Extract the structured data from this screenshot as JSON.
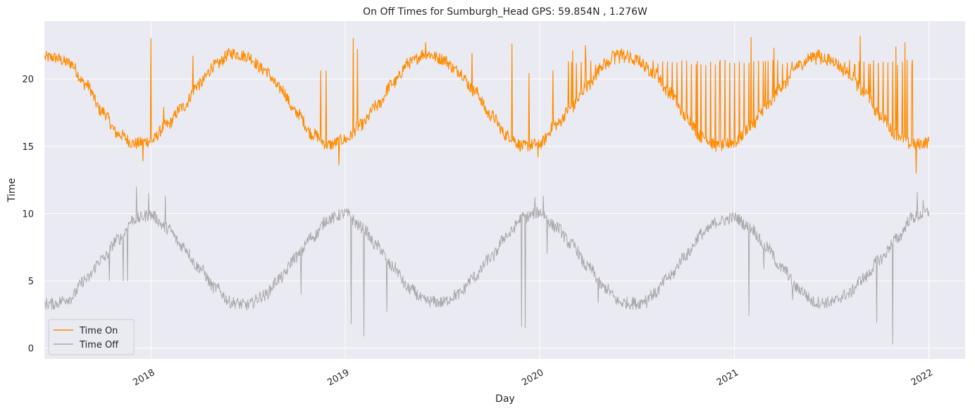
{
  "chart_data": {
    "type": "line",
    "title": "On Off Times for Sumburgh_Head  GPS: 59.854N , 1.276W",
    "xlabel": "Day",
    "ylabel": "Time",
    "x_range": [
      "2017-06-15",
      "2022-03-10"
    ],
    "ylim": [
      -0.8,
      24.3
    ],
    "x_ticks": [
      {
        "date": "2018-01-01",
        "label": "2018"
      },
      {
        "date": "2019-01-01",
        "label": "2019"
      },
      {
        "date": "2020-01-01",
        "label": "2020"
      },
      {
        "date": "2021-01-01",
        "label": "2021"
      },
      {
        "date": "2022-01-01",
        "label": "2022"
      }
    ],
    "y_ticks": [
      0,
      5,
      10,
      15,
      20
    ],
    "grid": true,
    "legend_position": "bottom-left",
    "background_color": "#eaeaf2",
    "series": [
      {
        "name": "Time On",
        "color": "#ff8c00",
        "points": [
          [
            "2017-07-01",
            21.6
          ],
          [
            "2017-08-01",
            21.2
          ],
          [
            "2017-09-01",
            19.6
          ],
          [
            "2017-10-01",
            17.6
          ],
          [
            "2017-11-01",
            15.9
          ],
          [
            "2017-12-01",
            15.2
          ],
          [
            "2018-01-01",
            15.4
          ],
          [
            "2018-02-01",
            16.6
          ],
          [
            "2018-03-01",
            17.9
          ],
          [
            "2018-04-01",
            19.6
          ],
          [
            "2018-05-01",
            21.0
          ],
          [
            "2018-06-01",
            21.9
          ],
          [
            "2018-07-01",
            21.7
          ],
          [
            "2018-08-01",
            20.7
          ],
          [
            "2018-09-01",
            19.3
          ],
          [
            "2018-10-01",
            17.5
          ],
          [
            "2018-11-01",
            15.9
          ],
          [
            "2018-12-01",
            15.1
          ],
          [
            "2019-01-01",
            15.5
          ],
          [
            "2019-02-01",
            16.6
          ],
          [
            "2019-03-01",
            18.0
          ],
          [
            "2019-04-01",
            19.7
          ],
          [
            "2019-05-01",
            21.2
          ],
          [
            "2019-06-01",
            21.9
          ],
          [
            "2019-07-01",
            21.5
          ],
          [
            "2019-08-01",
            20.6
          ],
          [
            "2019-09-01",
            19.1
          ],
          [
            "2019-10-01",
            17.3
          ],
          [
            "2019-11-01",
            15.8
          ],
          [
            "2019-12-01",
            15.0
          ],
          [
            "2020-01-01",
            15.2
          ],
          [
            "2020-02-01",
            16.6
          ],
          [
            "2020-03-01",
            17.9
          ],
          [
            "2020-04-01",
            19.5
          ],
          [
            "2020-05-01",
            21.1
          ],
          [
            "2020-06-01",
            21.9
          ],
          [
            "2020-07-01",
            21.4
          ],
          [
            "2020-08-01",
            20.5
          ],
          [
            "2020-09-01",
            19.0
          ],
          [
            "2020-10-01",
            17.2
          ],
          [
            "2020-11-01",
            15.7
          ],
          [
            "2020-12-01",
            15.0
          ],
          [
            "2021-01-01",
            15.3
          ],
          [
            "2021-02-01",
            16.5
          ],
          [
            "2021-03-01",
            17.9
          ],
          [
            "2021-04-01",
            19.5
          ],
          [
            "2021-05-01",
            21.0
          ],
          [
            "2021-06-01",
            21.8
          ],
          [
            "2021-07-01",
            21.4
          ],
          [
            "2021-08-01",
            20.5
          ],
          [
            "2021-09-01",
            19.0
          ],
          [
            "2021-10-01",
            17.3
          ],
          [
            "2021-11-01",
            15.9
          ],
          [
            "2021-12-01",
            15.1
          ],
          [
            "2022-01-01",
            15.3
          ]
        ],
        "spikes": [
          [
            "2017-12-17",
            13.9
          ],
          [
            "2018-01-01",
            23.0
          ],
          [
            "2018-01-25",
            17.9
          ],
          [
            "2018-03-21",
            21.7
          ],
          [
            "2018-04-21",
            20.2
          ],
          [
            "2018-11-16",
            20.6
          ],
          [
            "2018-11-26",
            20.6
          ],
          [
            "2018-12-20",
            13.6
          ],
          [
            "2019-01-16",
            23.0
          ],
          [
            "2019-01-24",
            22.2
          ],
          [
            "2019-06-01",
            22.7
          ],
          [
            "2019-08-27",
            21.9
          ],
          [
            "2019-11-10",
            22.6
          ],
          [
            "2019-12-12",
            20.4
          ],
          [
            "2019-12-29",
            14.2
          ],
          [
            "2020-01-11",
            15.7
          ],
          [
            "2020-01-26",
            20.6
          ],
          [
            "2020-02-24",
            21.3
          ],
          [
            "2020-03-03",
            22.1
          ],
          [
            "2020-03-27",
            22.5
          ],
          [
            "2020-05-08",
            21.2
          ],
          [
            "2020-05-17",
            22.1
          ],
          [
            "2020-10-23",
            21.3
          ],
          [
            "2020-12-04",
            21.2
          ],
          [
            "2021-02-01",
            23.1
          ],
          [
            "2021-02-28",
            21.3
          ],
          [
            "2021-03-16",
            22.3
          ],
          [
            "2021-04-01",
            21.1
          ],
          [
            "2021-08-15",
            21.1
          ],
          [
            "2021-08-25",
            23.2
          ],
          [
            "2021-09-13",
            21.1
          ],
          [
            "2021-10-31",
            22.4
          ],
          [
            "2021-11-17",
            22.7
          ],
          [
            "2021-12-01",
            21.4
          ],
          [
            "2021-12-08",
            13.0
          ]
        ]
      },
      {
        "name": "Time Off",
        "color": "#a9a9a9",
        "points": [
          [
            "2017-07-01",
            3.3
          ],
          [
            "2017-08-01",
            3.7
          ],
          [
            "2017-09-01",
            5.1
          ],
          [
            "2017-10-01",
            6.6
          ],
          [
            "2017-11-01",
            8.1
          ],
          [
            "2017-12-01",
            9.6
          ],
          [
            "2018-01-01",
            9.9
          ],
          [
            "2018-02-01",
            8.9
          ],
          [
            "2018-03-01",
            7.6
          ],
          [
            "2018-04-01",
            6.0
          ],
          [
            "2018-05-01",
            4.5
          ],
          [
            "2018-06-01",
            3.4
          ],
          [
            "2018-07-01",
            3.2
          ],
          [
            "2018-08-01",
            3.9
          ],
          [
            "2018-09-01",
            5.2
          ],
          [
            "2018-10-01",
            6.8
          ],
          [
            "2018-11-01",
            8.3
          ],
          [
            "2018-12-01",
            9.6
          ],
          [
            "2019-01-01",
            10.0
          ],
          [
            "2019-02-01",
            9.0
          ],
          [
            "2019-03-01",
            7.6
          ],
          [
            "2019-04-01",
            6.0
          ],
          [
            "2019-05-01",
            4.4
          ],
          [
            "2019-06-01",
            3.5
          ],
          [
            "2019-07-01",
            3.4
          ],
          [
            "2019-08-01",
            4.0
          ],
          [
            "2019-09-01",
            5.3
          ],
          [
            "2019-10-01",
            6.7
          ],
          [
            "2019-11-01",
            8.4
          ],
          [
            "2019-12-01",
            9.7
          ],
          [
            "2020-01-01",
            10.1
          ],
          [
            "2020-02-01",
            9.0
          ],
          [
            "2020-03-01",
            7.7
          ],
          [
            "2020-04-01",
            6.0
          ],
          [
            "2020-05-01",
            4.5
          ],
          [
            "2020-06-01",
            3.4
          ],
          [
            "2020-07-01",
            3.3
          ],
          [
            "2020-08-01",
            4.0
          ],
          [
            "2020-09-01",
            5.3
          ],
          [
            "2020-10-01",
            6.9
          ],
          [
            "2020-11-01",
            8.5
          ],
          [
            "2020-12-01",
            9.4
          ],
          [
            "2021-01-01",
            9.7
          ],
          [
            "2021-02-01",
            8.9
          ],
          [
            "2021-03-01",
            7.5
          ],
          [
            "2021-04-01",
            5.9
          ],
          [
            "2021-05-01",
            4.4
          ],
          [
            "2021-06-01",
            3.4
          ],
          [
            "2021-07-01",
            3.4
          ],
          [
            "2021-08-01",
            4.0
          ],
          [
            "2021-09-01",
            5.2
          ],
          [
            "2021-10-01",
            6.6
          ],
          [
            "2021-11-01",
            8.1
          ],
          [
            "2021-12-01",
            9.7
          ],
          [
            "2022-01-01",
            10.1
          ]
        ],
        "spikes": [
          [
            "2017-10-15",
            5.0
          ],
          [
            "2017-11-10",
            5.0
          ],
          [
            "2017-11-18",
            5.0
          ],
          [
            "2017-12-05",
            12.0
          ],
          [
            "2017-12-28",
            11.5
          ],
          [
            "2018-01-28",
            11.3
          ],
          [
            "2018-10-10",
            4.0
          ],
          [
            "2019-01-12",
            1.8
          ],
          [
            "2019-02-05",
            0.9
          ],
          [
            "2019-03-20",
            2.7
          ],
          [
            "2019-11-28",
            1.6
          ],
          [
            "2019-12-05",
            1.5
          ],
          [
            "2019-12-23",
            11.2
          ],
          [
            "2020-01-08",
            11.3
          ],
          [
            "2020-01-15",
            7.0
          ],
          [
            "2020-04-20",
            3.4
          ],
          [
            "2020-06-25",
            3.8
          ],
          [
            "2020-07-20",
            3.0
          ],
          [
            "2021-01-28",
            2.4
          ],
          [
            "2021-02-25",
            5.9
          ],
          [
            "2021-04-20",
            3.6
          ],
          [
            "2021-09-25",
            1.9
          ],
          [
            "2021-10-25",
            0.3
          ],
          [
            "2021-12-10",
            11.6
          ],
          [
            "2021-12-21",
            11.0
          ]
        ]
      }
    ]
  }
}
